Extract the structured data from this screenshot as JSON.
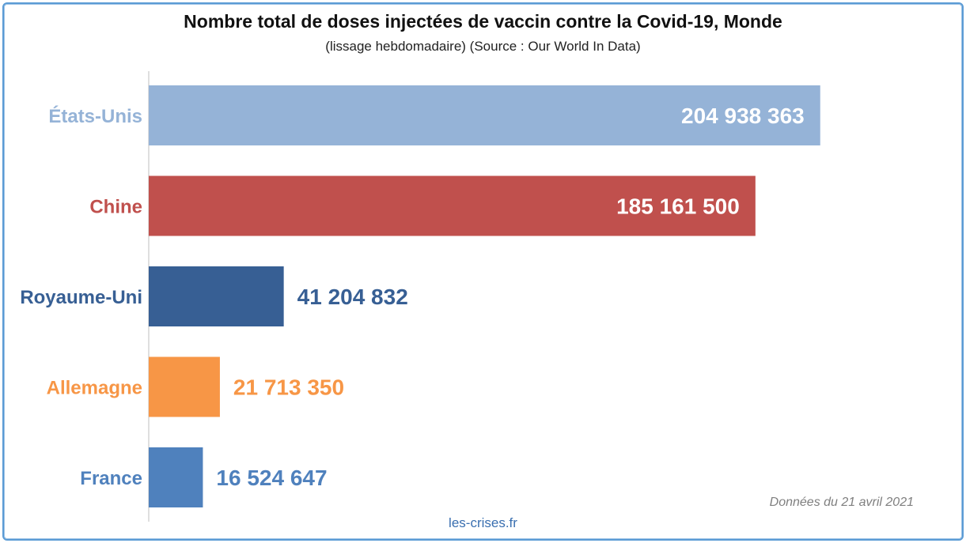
{
  "chart_data": {
    "type": "bar",
    "orientation": "horizontal",
    "title": "Nombre total de doses injectées de vaccin contre la Covid-19, Monde",
    "subtitle": "(lissage hebdomadaire) (Source : Our World In Data)",
    "categories": [
      "États-Unis",
      "Chine",
      "Royaume-Uni",
      "Allemagne",
      "France"
    ],
    "values": [
      204938363,
      185161500,
      41204832,
      21713350,
      16524647
    ],
    "value_labels": [
      "204 938 363",
      "185 161 500",
      "41 204 832",
      "21 713 350",
      "16 524 647"
    ],
    "colors": [
      "#95b3d7",
      "#c0504d",
      "#375f94",
      "#f79646",
      "#4f81bd"
    ],
    "xlim": [
      0,
      205000000
    ],
    "grid": false,
    "legend": "none"
  },
  "footer": {
    "source": "les-crises.fr",
    "date_note": "Données du 21 avril 2021"
  }
}
